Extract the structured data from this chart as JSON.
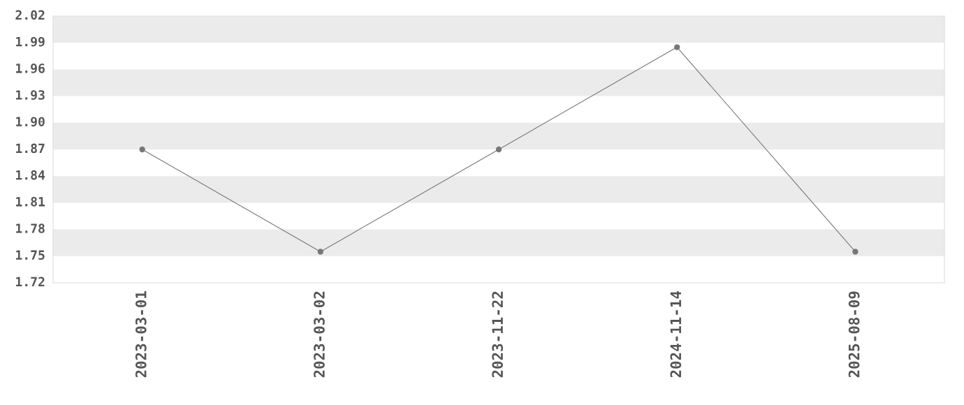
{
  "chart_data": {
    "type": "line",
    "categories": [
      "2023-03-01",
      "2023-03-02",
      "2023-11-22",
      "2024-11-14",
      "2025-08-09"
    ],
    "series": [
      {
        "color": "#777777",
        "values": [
          1.87,
          1.755,
          1.87,
          1.985,
          1.755
        ]
      }
    ],
    "ylim": [
      1.72,
      2.02
    ],
    "yticks": [
      1.72,
      1.75,
      1.78,
      1.81,
      1.84,
      1.87,
      {
        "value": 1.9,
        "label": "1.90"
      },
      1.93,
      1.96,
      1.99,
      2.02
    ],
    "bands": [
      {
        "axis": "y",
        "from": 1.99,
        "to": 2.02,
        "color": "#ebebeb"
      },
      {
        "axis": "y",
        "from": 1.93,
        "to": 1.96,
        "color": "#ebebeb"
      },
      {
        "axis": "y",
        "from": 1.87,
        "to": 1.9,
        "color": "#ebebeb"
      },
      {
        "axis": "y",
        "from": 1.81,
        "to": 1.84,
        "color": "#ebebeb"
      },
      {
        "axis": "y",
        "from": 1.75,
        "to": 1.78,
        "color": "#ebebeb"
      }
    ],
    "marker": "circle",
    "line_style": "solid",
    "grid": false,
    "legend": false
  }
}
